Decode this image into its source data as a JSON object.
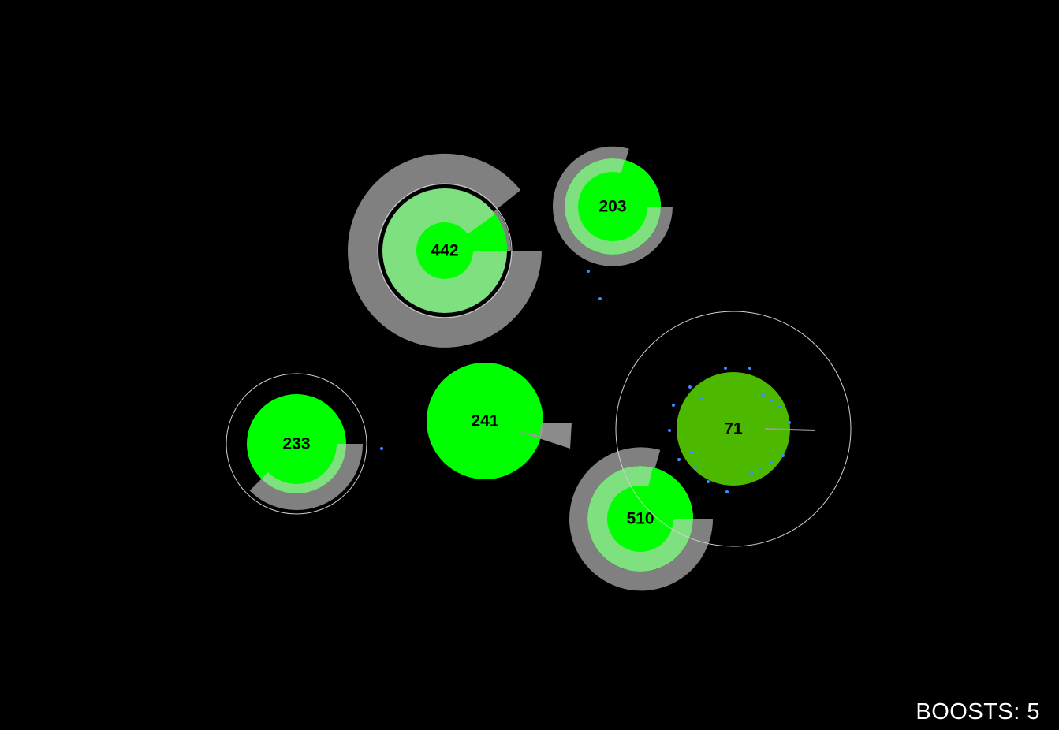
{
  "game": {
    "nodes": [
      {
        "id": "node-442",
        "value": "442",
        "color": "#00ff00"
      },
      {
        "id": "node-203",
        "value": "203",
        "color": "#00ff00"
      },
      {
        "id": "node-233",
        "value": "233",
        "color": "#00ff00"
      },
      {
        "id": "node-241",
        "value": "241",
        "color": "#00ff00"
      },
      {
        "id": "node-510",
        "value": "510",
        "color": "#00ff00"
      },
      {
        "id": "node-71",
        "value": "71",
        "color": "#4cb800",
        "selected": true
      }
    ],
    "colors": {
      "background": "#000000",
      "ring_gray": "#808080",
      "ring_light_green": "#7fe07f",
      "particle_blue": "#3a8dff",
      "outline": "#d0d0d0"
    }
  },
  "hud": {
    "boosts_label": "BOOSTS: 5"
  }
}
